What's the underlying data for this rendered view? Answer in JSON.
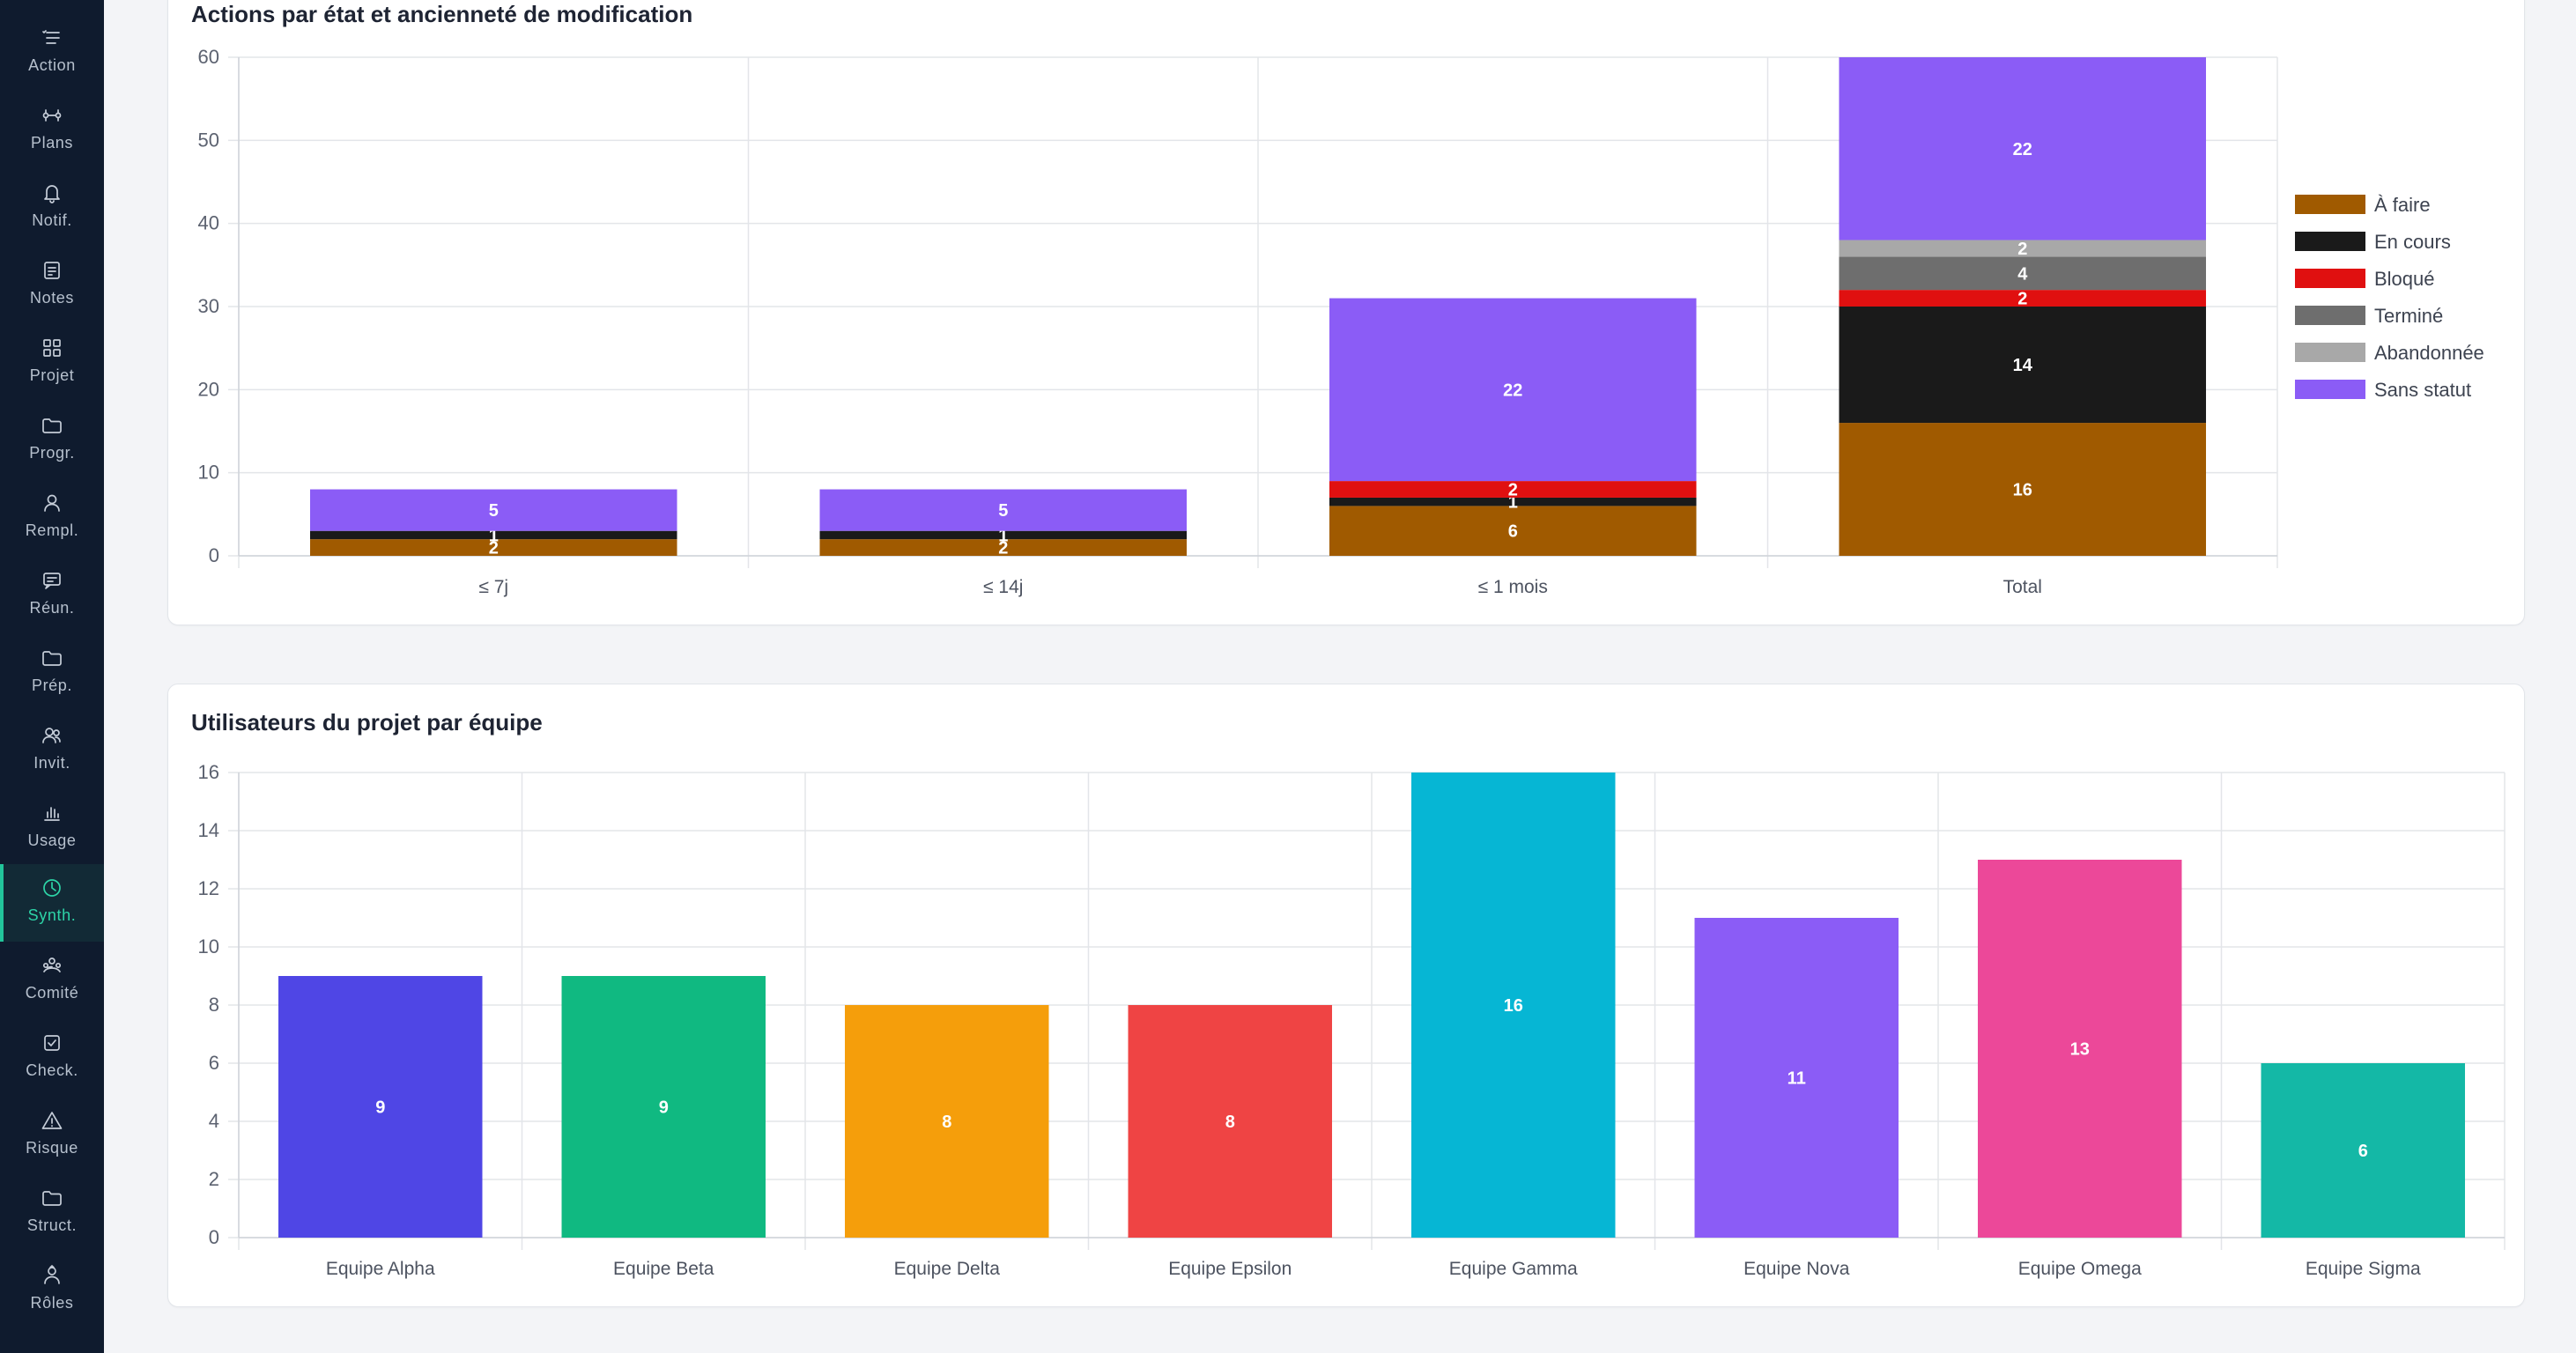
{
  "sidebar": {
    "items": [
      {
        "label": "Action",
        "icon": "list-check-icon"
      },
      {
        "label": "Plans",
        "icon": "connection-icon"
      },
      {
        "label": "Notif.",
        "icon": "bell-icon"
      },
      {
        "label": "Notes",
        "icon": "note-icon"
      },
      {
        "label": "Projet",
        "icon": "grid-icon"
      },
      {
        "label": "Progr.",
        "icon": "folder-icon"
      },
      {
        "label": "Rempl.",
        "icon": "user-icon"
      },
      {
        "label": "Réun.",
        "icon": "chat-icon"
      },
      {
        "label": "Prép.",
        "icon": "folder-icon"
      },
      {
        "label": "Invit.",
        "icon": "users-icon"
      },
      {
        "label": "Usage",
        "icon": "bar-chart-icon"
      },
      {
        "label": "Synth.",
        "icon": "pie-chart-icon",
        "active": true
      },
      {
        "label": "Comité",
        "icon": "committee-icon"
      },
      {
        "label": "Check.",
        "icon": "checkbox-icon"
      },
      {
        "label": "Risque",
        "icon": "warning-icon"
      },
      {
        "label": "Struct.",
        "icon": "folder-icon"
      },
      {
        "label": "Rôles",
        "icon": "user-role-icon"
      }
    ],
    "active_color": "#2dd4a7"
  },
  "cards": {
    "actions_title": "Actions par état et ancienneté de modification",
    "users_title": "Utilisateurs du projet par équipe"
  },
  "chart_data": [
    {
      "type": "bar",
      "stacked": true,
      "title": "Actions par état et ancienneté de modification",
      "categories": [
        "≤ 7j",
        "≤ 14j",
        "≤ 1 mois",
        "Total"
      ],
      "ylim": [
        0,
        60
      ],
      "yticks": [
        0,
        10,
        20,
        30,
        40,
        50,
        60
      ],
      "grid": true,
      "legend_position": "right",
      "series": [
        {
          "name": "À faire",
          "color": "#a05a00",
          "values": [
            2,
            2,
            6,
            16
          ]
        },
        {
          "name": "En cours",
          "color": "#1a1a1a",
          "values": [
            1,
            1,
            1,
            14
          ]
        },
        {
          "name": "Bloqué",
          "color": "#e01010",
          "values": [
            0,
            0,
            2,
            2
          ]
        },
        {
          "name": "Terminé",
          "color": "#6e6e6e",
          "values": [
            0,
            0,
            0,
            4
          ]
        },
        {
          "name": "Abandonnée",
          "color": "#a8a8a8",
          "values": [
            0,
            0,
            0,
            2
          ]
        },
        {
          "name": "Sans statut",
          "color": "#8b5cf6",
          "values": [
            5,
            5,
            22,
            22
          ]
        }
      ]
    },
    {
      "type": "bar",
      "title": "Utilisateurs du projet par équipe",
      "categories": [
        "Equipe Alpha",
        "Equipe Beta",
        "Equipe Delta",
        "Equipe Epsilon",
        "Equipe Gamma",
        "Equipe Nova",
        "Equipe Omega",
        "Equipe Sigma"
      ],
      "values": [
        9,
        9,
        8,
        8,
        16,
        11,
        13,
        6
      ],
      "colors": [
        "#4f46e5",
        "#10b981",
        "#f59e0b",
        "#ef4444",
        "#06b6d4",
        "#8b5cf6",
        "#ec4899",
        "#14b8a6"
      ],
      "ylim": [
        0,
        16
      ],
      "yticks": [
        0,
        2,
        4,
        6,
        8,
        10,
        12,
        14,
        16
      ],
      "grid": true
    }
  ]
}
